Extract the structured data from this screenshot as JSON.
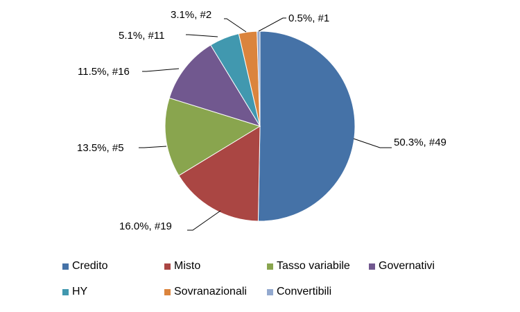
{
  "chart_data": {
    "type": "pie",
    "slices": [
      {
        "name": "Credito",
        "value": 50.3,
        "count": 49,
        "label": "50.3%, #49",
        "color": "#4572A7"
      },
      {
        "name": "Misto",
        "value": 16.0,
        "count": 19,
        "label": "16.0%, #19",
        "color": "#AA4643"
      },
      {
        "name": "Tasso variabile",
        "value": 13.5,
        "count": 5,
        "label": "13.5%, #5",
        "color": "#89A54E"
      },
      {
        "name": "Governativi",
        "value": 11.5,
        "count": 16,
        "label": "11.5%, #16",
        "color": "#71588F"
      },
      {
        "name": "HY",
        "value": 5.1,
        "count": 11,
        "label": "5.1%, #11",
        "color": "#4198AF"
      },
      {
        "name": "Sovranazionali",
        "value": 3.1,
        "count": 2,
        "label": "3.1%, #2",
        "color": "#DB843D"
      },
      {
        "name": "Convertibili",
        "value": 0.5,
        "count": 1,
        "label": "0.5%, #1",
        "color": "#93A9CF"
      }
    ],
    "legend_position": "bottom"
  }
}
